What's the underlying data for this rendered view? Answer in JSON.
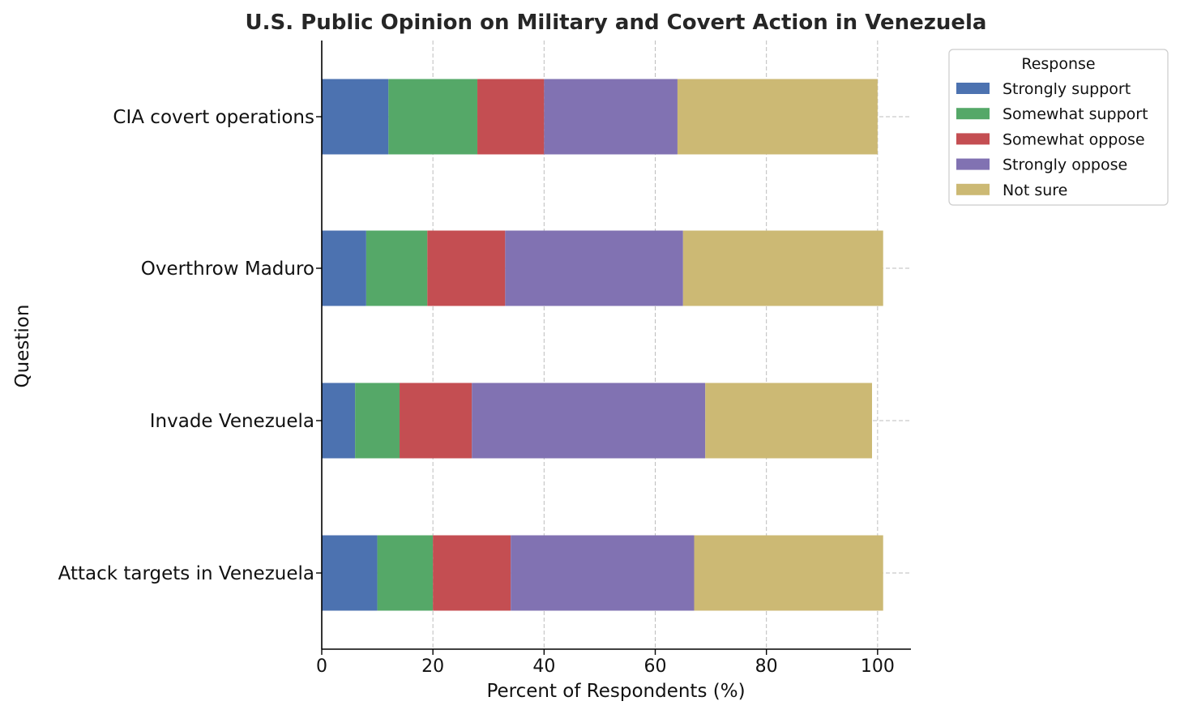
{
  "chart_data": {
    "type": "bar",
    "orientation": "horizontal",
    "stacked": true,
    "title": "U.S. Public Opinion on Military and Covert Action in Venezuela",
    "xlabel": "Percent of Respondents (%)",
    "ylabel": "Question",
    "xlim": [
      0,
      106
    ],
    "xticks": [
      "0",
      "20",
      "40",
      "60",
      "80",
      "100"
    ],
    "grid": true,
    "legend_position": "outside-top-right",
    "legend_title": "Response",
    "categories": [
      "CIA covert operations",
      "Overthrow Maduro",
      "Invade Venezuela",
      "Attack targets in Venezuela"
    ],
    "series": [
      {
        "name": "Strongly support",
        "color": "#4c72b0",
        "values": [
          12,
          8,
          6,
          10
        ]
      },
      {
        "name": "Somewhat support",
        "color": "#55a868",
        "values": [
          16,
          11,
          8,
          10
        ]
      },
      {
        "name": "Somewhat oppose",
        "color": "#c44e52",
        "values": [
          12,
          14,
          13,
          14
        ]
      },
      {
        "name": "Strongly oppose",
        "color": "#8172b2",
        "values": [
          24,
          32,
          42,
          33
        ]
      },
      {
        "name": "Not sure",
        "color": "#ccb974",
        "values": [
          36,
          36,
          30,
          34
        ]
      }
    ]
  }
}
